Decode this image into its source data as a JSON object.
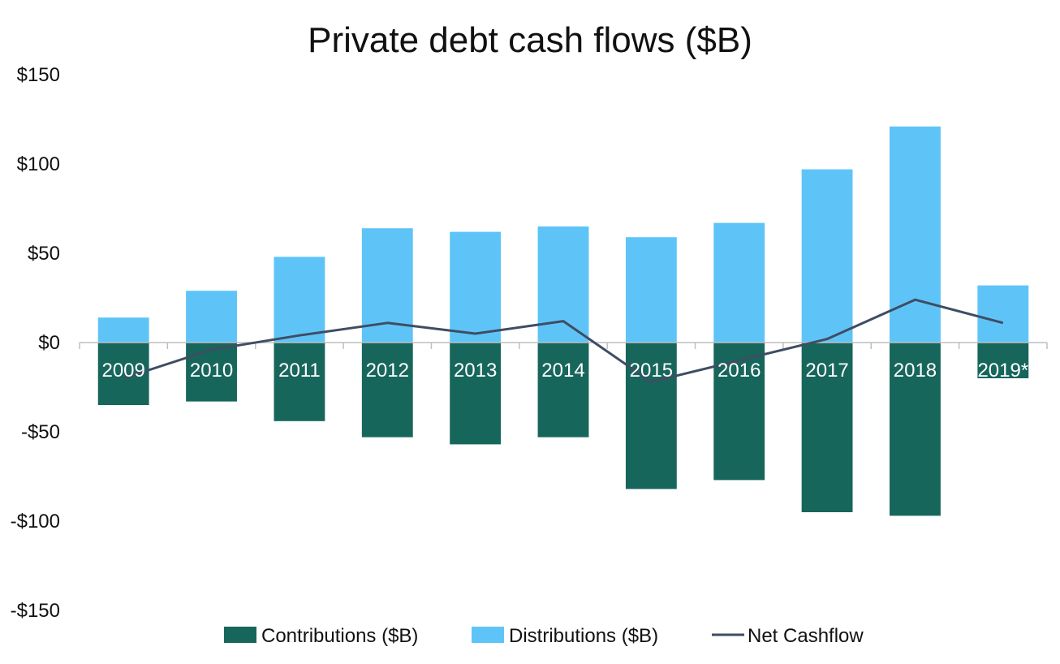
{
  "chart_data": {
    "type": "bar",
    "title": "Private debt cash flows ($B)",
    "categories": [
      "2009",
      "2010",
      "2011",
      "2012",
      "2013",
      "2014",
      "2015",
      "2016",
      "2017",
      "2018",
      "2019*"
    ],
    "series": [
      {
        "name": "Contributions ($B)",
        "type": "bar",
        "color": "#17665c",
        "values": [
          -35,
          -33,
          -44,
          -53,
          -57,
          -53,
          -82,
          -77,
          -95,
          -97,
          -20
        ]
      },
      {
        "name": "Distributions ($B)",
        "type": "bar",
        "color": "#5ec4f8",
        "values": [
          14,
          29,
          48,
          64,
          62,
          65,
          59,
          67,
          97,
          121,
          32
        ]
      },
      {
        "name": "Net Cashflow",
        "type": "line",
        "color": "#3f4d63",
        "values": [
          -20,
          -4,
          4,
          11,
          5,
          12,
          -22,
          -10,
          2,
          24,
          11
        ]
      }
    ],
    "ylim": [
      -150,
      150
    ],
    "yticks": [
      150,
      100,
      50,
      0,
      -50,
      -100,
      -150
    ],
    "ytick_labels": [
      "$150",
      "$100",
      "$50",
      "$0",
      "-$50",
      "-$100",
      "-$150"
    ],
    "legend_position": "bottom",
    "grid": false,
    "stacked": true
  }
}
